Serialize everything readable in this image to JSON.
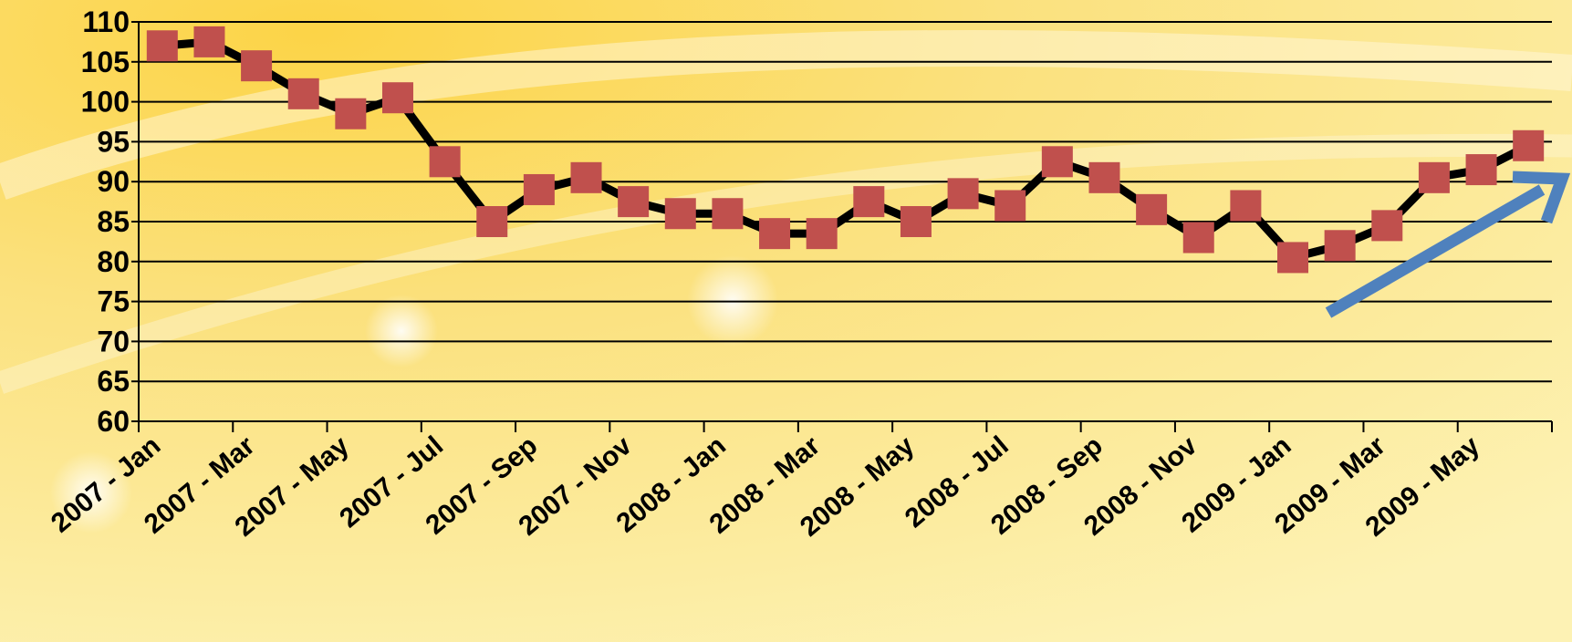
{
  "chart_data": {
    "type": "line",
    "categories": [
      "2007 - Jan",
      null,
      "2007 - Mar",
      null,
      "2007 - May",
      null,
      "2007 - Jul",
      null,
      "2007 - Sep",
      null,
      "2007 - Nov",
      null,
      "2008 - Jan",
      null,
      "2008 - Mar",
      null,
      "2008 - May",
      null,
      "2008 - Jul",
      null,
      "2008 - Sep",
      null,
      "2008 - Nov",
      null,
      "2009 - Jan",
      null,
      "2009 - Mar",
      null,
      "2009 - May",
      null
    ],
    "values": [
      107,
      107.5,
      104.5,
      101,
      98.5,
      100.5,
      92.5,
      85,
      89,
      90.5,
      87.5,
      86,
      86,
      83.5,
      83.5,
      87.5,
      85,
      88.5,
      87,
      92.5,
      90.5,
      86.5,
      83,
      87,
      80.5,
      82,
      84.5,
      90.5,
      91.5,
      94.5
    ],
    "color": "#000000",
    "marker_color": "#c0504d",
    "ylim": [
      60,
      110
    ],
    "yticks": [
      60,
      65,
      70,
      75,
      80,
      85,
      90,
      95,
      100,
      105,
      110
    ],
    "grid": true
  }
}
